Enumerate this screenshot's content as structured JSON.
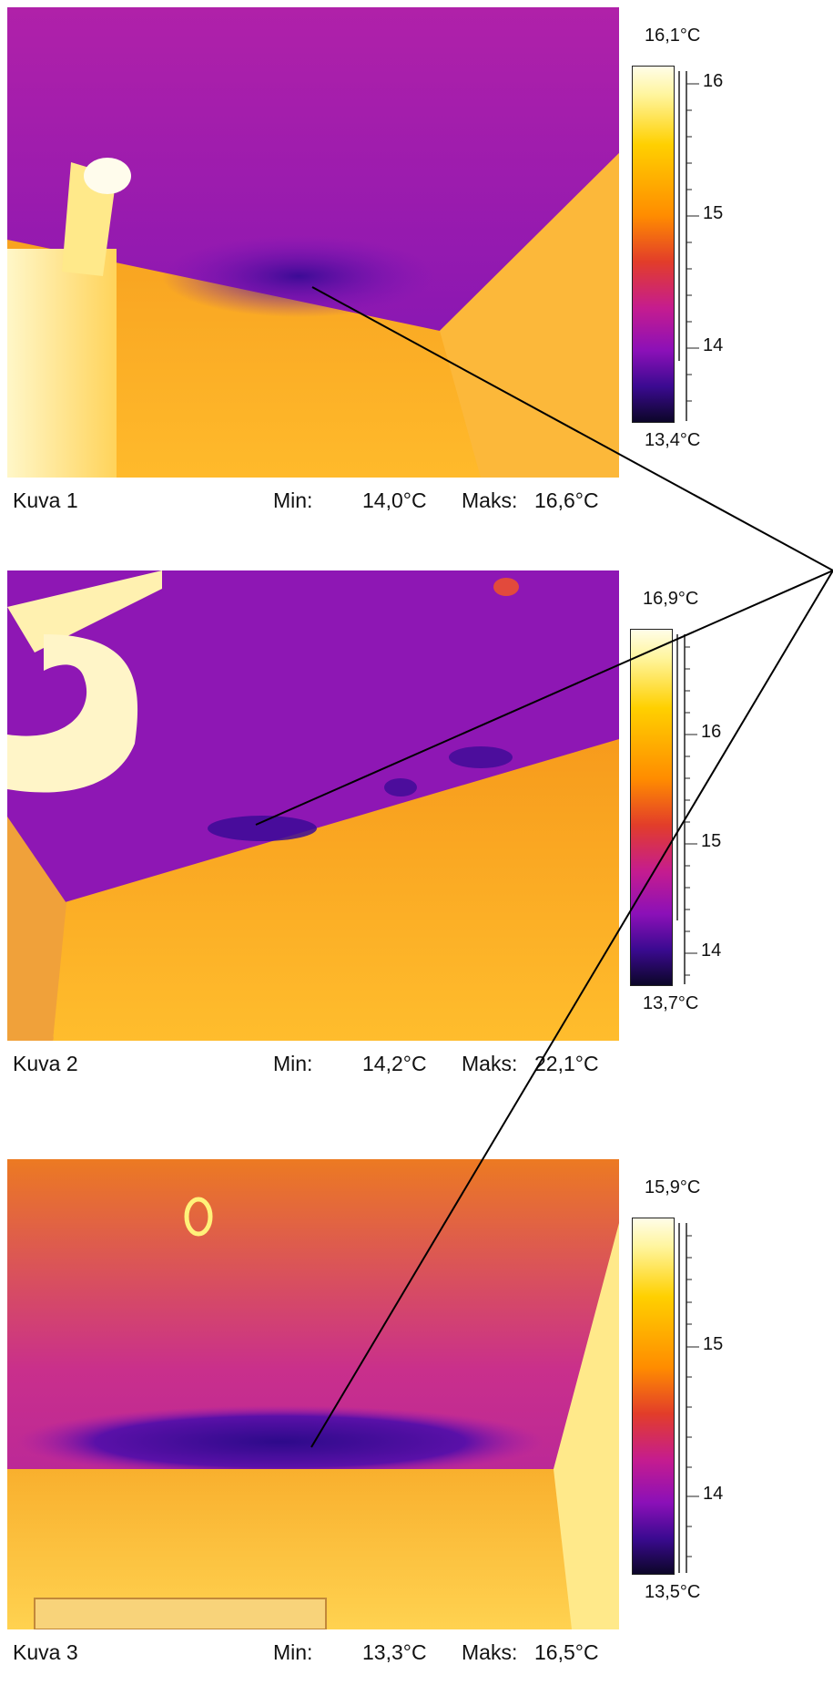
{
  "images": [
    {
      "caption": {
        "title": "Kuva 1",
        "min_label": "Min:",
        "min_value": "14,0°C",
        "max_label": "Maks:",
        "max_value": "16,6°C"
      },
      "scale": {
        "top": "16,1°C",
        "bottom": "13,4°C",
        "ticks": [
          "16",
          "15",
          "14"
        ]
      }
    },
    {
      "caption": {
        "title": "Kuva 2",
        "min_label": "Min:",
        "min_value": "14,2°C",
        "max_label": "Maks:",
        "max_value": "22,1°C"
      },
      "scale": {
        "top": "16,9°C",
        "bottom": "13,7°C",
        "ticks": [
          "16",
          "15",
          "14"
        ]
      }
    },
    {
      "caption": {
        "title": "Kuva 3",
        "min_label": "Min:",
        "min_value": "13,3°C",
        "max_label": "Maks:",
        "max_value": "16,5°C"
      },
      "scale": {
        "top": "15,9°C",
        "bottom": "13,5°C",
        "ticks": [
          "15",
          "14"
        ]
      }
    }
  ],
  "colors": {
    "palette": [
      "#fffde8",
      "#fff59d",
      "#ffd000",
      "#ff8c00",
      "#e23d2a",
      "#c51c8f",
      "#8b10b8",
      "#3b0a91",
      "#0c0628"
    ],
    "annotation_line": "#000000"
  }
}
